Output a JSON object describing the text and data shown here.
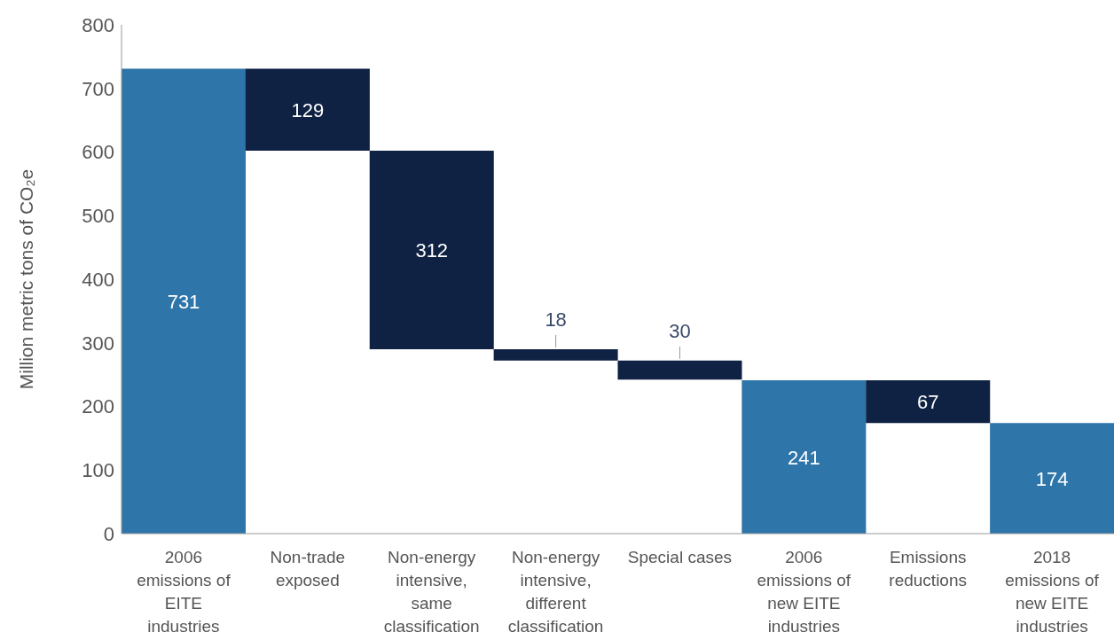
{
  "chart_data": {
    "type": "bar",
    "ylabel": "Million metric tons of CO₂e",
    "categories": [
      "2006 emissions of EITE industries",
      "Non-trade exposed",
      "Non-energy intensive, same classification",
      "Non-energy intensive, different classification",
      "Special cases",
      "2006 emissions of new EITE industries",
      "Emissions reductions",
      "2018 emissions of new EITE industries"
    ],
    "values": [
      731,
      129,
      312,
      18,
      30,
      241,
      67,
      174
    ],
    "base": [
      0,
      602,
      290,
      272,
      242,
      0,
      174,
      0
    ],
    "colors": [
      "#2e75aa",
      "#0f2244",
      "#0f2244",
      "#0f2244",
      "#0f2244",
      "#2e75aa",
      "#0f2244",
      "#2e75aa"
    ],
    "ylim": [
      0,
      800
    ],
    "yticks": [
      0,
      100,
      200,
      300,
      400,
      500,
      600,
      700,
      800
    ],
    "grid": false,
    "data_labels": true
  }
}
